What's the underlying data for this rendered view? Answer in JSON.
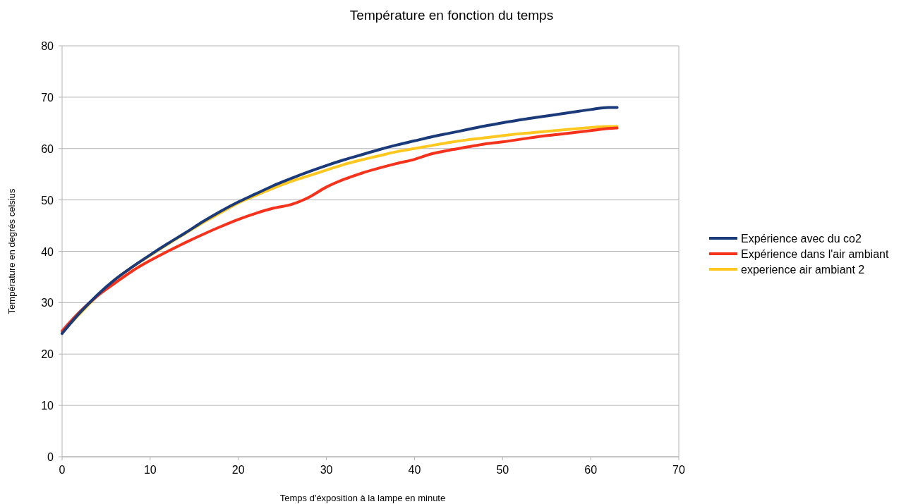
{
  "chart_data": {
    "type": "line",
    "title": "Température en fonction du temps",
    "xlabel": "Temps d'éxposition à la lampe en minute",
    "ylabel": "Température en degrés celsius",
    "x": [
      0,
      2,
      4,
      6,
      8,
      10,
      12,
      14,
      16,
      18,
      20,
      22,
      24,
      26,
      28,
      30,
      32,
      34,
      36,
      38,
      40,
      42,
      44,
      46,
      48,
      50,
      52,
      54,
      56,
      58,
      60,
      62,
      63
    ],
    "series": [
      {
        "name": "Expérience avec du co2",
        "color": "#1a3a7a",
        "values": [
          24,
          28,
          31.5,
          34.5,
          37,
          39.3,
          41.5,
          43.6,
          45.8,
          47.8,
          49.6,
          51.2,
          52.8,
          54.2,
          55.5,
          56.7,
          57.8,
          58.8,
          59.8,
          60.7,
          61.5,
          62.3,
          63,
          63.7,
          64.4,
          65,
          65.6,
          66.1,
          66.6,
          67.1,
          67.6,
          68,
          68
        ]
      },
      {
        "name": "Expérience dans l'air ambiant",
        "color": "#f5331c",
        "values": [
          24.5,
          28.2,
          31.3,
          33.8,
          36.2,
          38.2,
          40,
          41.7,
          43.3,
          44.8,
          46.2,
          47.4,
          48.4,
          49.1,
          50.5,
          52.5,
          54,
          55.2,
          56.2,
          57.1,
          57.9,
          59,
          59.7,
          60.3,
          60.9,
          61.3,
          61.8,
          62.3,
          62.7,
          63.1,
          63.5,
          63.9,
          64
        ]
      },
      {
        "name": "experience air ambiant 2",
        "color": "#ffc820",
        "values": [
          24.2,
          27.8,
          31.3,
          34.5,
          37,
          39.2,
          41.4,
          43.5,
          45.6,
          47.5,
          49.4,
          50.9,
          52.3,
          53.6,
          54.7,
          55.8,
          56.9,
          57.8,
          58.6,
          59.4,
          60,
          60.6,
          61.2,
          61.7,
          62.1,
          62.5,
          62.9,
          63.2,
          63.5,
          63.8,
          64.1,
          64.3,
          64.3
        ]
      }
    ],
    "xlim": [
      0,
      70
    ],
    "xticks": [
      0,
      10,
      20,
      30,
      40,
      50,
      60,
      70
    ],
    "ylim": [
      0,
      80
    ],
    "yticks": [
      0,
      10,
      20,
      30,
      40,
      50,
      60,
      70,
      80
    ],
    "grid": "y",
    "legend": "right"
  }
}
